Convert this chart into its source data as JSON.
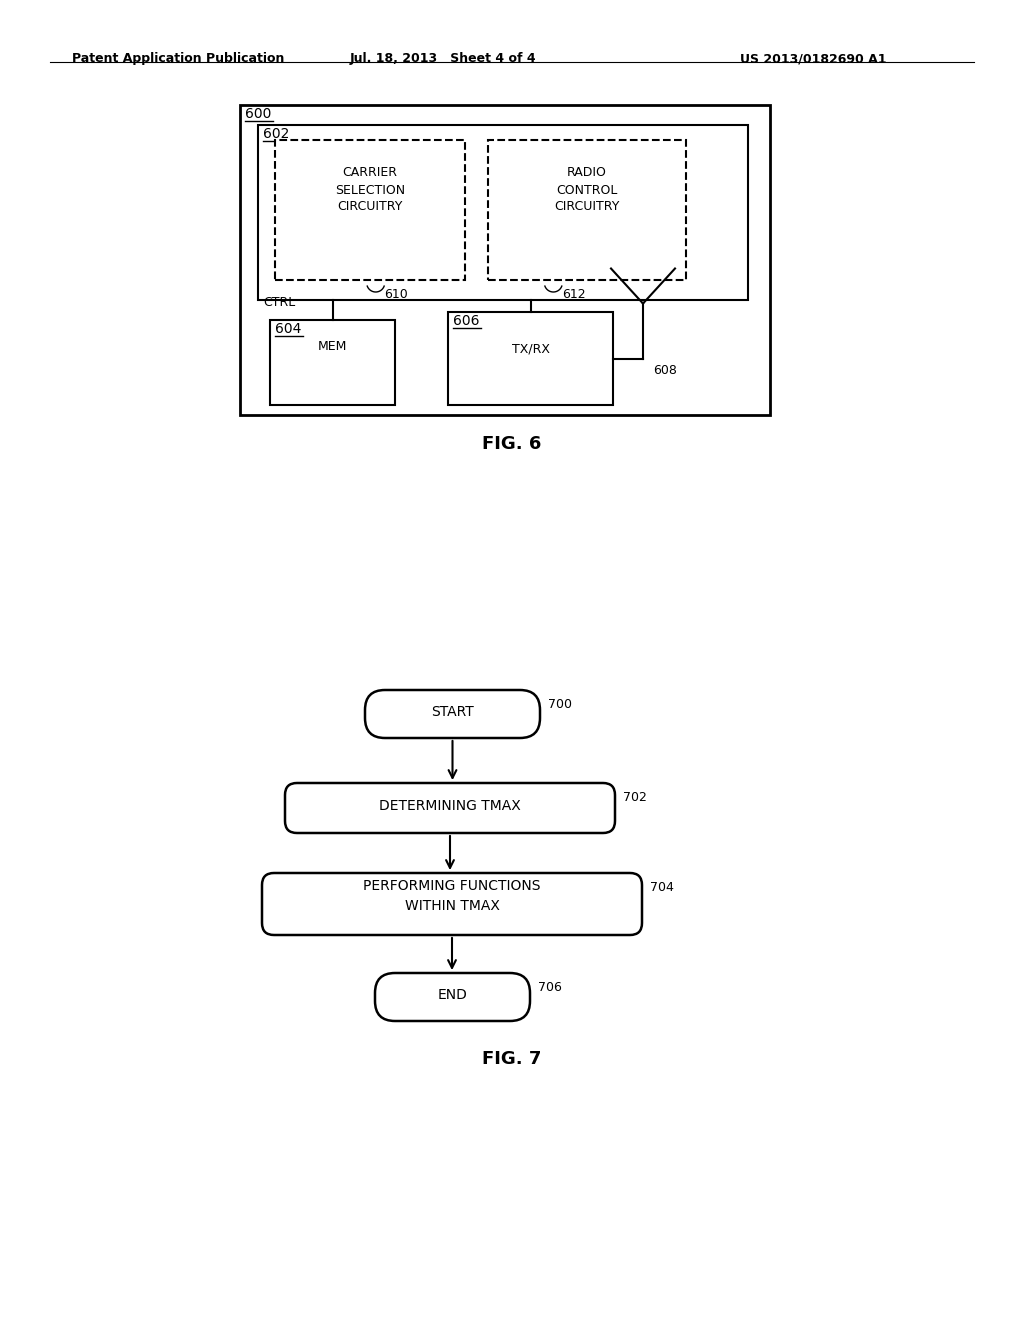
{
  "bg_color": "#ffffff",
  "header_text": "Patent Application Publication",
  "header_date": "Jul. 18, 2013   Sheet 4 of 4",
  "header_patent": "US 2013/0182690 A1",
  "fig6_label": "FIG. 6",
  "fig7_label": "FIG. 7"
}
